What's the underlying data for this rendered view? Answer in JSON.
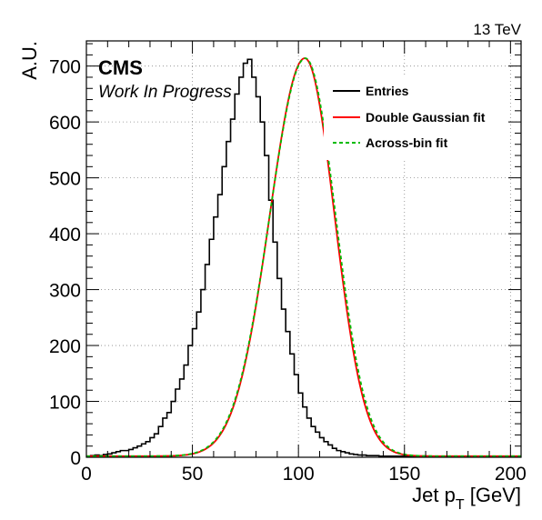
{
  "chart_data": {
    "type": "line",
    "energy_label": "13 TeV",
    "experiment_label": "CMS",
    "status_label": "Work In Progress",
    "xlabel_main": "Jet p",
    "xlabel_sub": "T",
    "xlabel_unit": " [GeV]",
    "ylabel": "A.U.",
    "xlim": [
      0,
      205
    ],
    "ylim": [
      0,
      745
    ],
    "xticks": [
      0,
      50,
      100,
      150,
      200
    ],
    "yticks": [
      0,
      100,
      200,
      300,
      400,
      500,
      600,
      700
    ],
    "grid": true,
    "legend_position": "top-right",
    "legend": [
      {
        "label": "Entries",
        "style": "solid",
        "color": "#000000"
      },
      {
        "label": "Double Gaussian fit",
        "style": "solid",
        "color": "#ff0000"
      },
      {
        "label": "Across-bin fit",
        "style": "dashed",
        "color": "#00bb00"
      }
    ],
    "histogram": {
      "name": "Entries",
      "bin_width": 2,
      "bin_start": 0,
      "values": [
        2,
        3,
        4,
        3,
        5,
        6,
        8,
        10,
        12,
        12,
        14,
        17,
        20,
        24,
        28,
        35,
        42,
        55,
        70,
        80,
        100,
        122,
        140,
        165,
        200,
        230,
        260,
        300,
        345,
        390,
        430,
        470,
        520,
        565,
        605,
        650,
        680,
        705,
        712,
        680,
        645,
        600,
        540,
        460,
        385,
        320,
        265,
        225,
        185,
        148,
        115,
        90,
        70,
        55,
        45,
        35,
        28,
        22,
        16,
        12,
        10,
        8,
        6,
        5,
        4,
        4,
        3,
        3,
        3,
        2,
        2,
        2,
        2,
        2,
        2,
        2,
        2,
        2,
        2,
        2,
        2,
        2,
        2,
        2,
        2,
        2,
        2,
        2,
        2,
        2,
        2,
        2,
        2,
        2,
        2,
        2,
        2,
        2,
        2,
        2,
        2,
        2
      ]
    },
    "series": [
      {
        "name": "Double Gaussian fit",
        "color": "#ff0000",
        "style": "solid",
        "mean": 103,
        "sigma_left": 16.5,
        "sigma_right": 14.0,
        "amplitude": 712
      },
      {
        "name": "Across-bin fit",
        "color": "#00bb00",
        "style": "dashed",
        "mean": 103.3,
        "sigma_left": 16.8,
        "sigma_right": 14.2,
        "amplitude": 712
      }
    ]
  }
}
